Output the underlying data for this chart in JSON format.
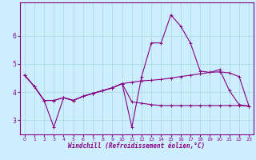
{
  "xlabel": "Windchill (Refroidissement éolien,°C)",
  "bg_color": "#cceeff",
  "line_color": "#880088",
  "grid_color": "#aadddd",
  "hours": [
    0,
    1,
    2,
    3,
    4,
    5,
    6,
    7,
    8,
    9,
    10,
    11,
    12,
    13,
    14,
    15,
    16,
    17,
    18,
    19,
    20,
    21,
    22,
    23
  ],
  "line1": [
    4.6,
    4.2,
    3.7,
    2.75,
    3.8,
    3.7,
    3.85,
    3.95,
    4.05,
    4.15,
    4.3,
    2.75,
    4.55,
    5.75,
    5.75,
    6.75,
    6.35,
    5.75,
    4.75,
    4.7,
    4.8,
    4.05,
    3.55,
    3.5
  ],
  "line2": [
    4.6,
    4.2,
    3.7,
    3.7,
    3.8,
    3.7,
    3.85,
    3.95,
    4.05,
    4.15,
    4.3,
    4.35,
    4.4,
    4.42,
    4.45,
    4.5,
    4.55,
    4.6,
    4.65,
    4.7,
    4.72,
    4.68,
    4.55,
    3.5
  ],
  "line3": [
    4.6,
    4.2,
    3.7,
    3.7,
    3.8,
    3.7,
    3.85,
    3.95,
    4.05,
    4.15,
    4.3,
    3.65,
    3.6,
    3.55,
    3.52,
    3.52,
    3.52,
    3.52,
    3.52,
    3.52,
    3.52,
    3.52,
    3.52,
    3.5
  ],
  "xlim": [
    -0.5,
    23.5
  ],
  "ylim": [
    2.5,
    7.2
  ],
  "yticks": [
    3,
    4,
    5,
    6
  ],
  "xticks": [
    0,
    1,
    2,
    3,
    4,
    5,
    6,
    7,
    8,
    9,
    10,
    11,
    12,
    13,
    14,
    15,
    16,
    17,
    18,
    19,
    20,
    21,
    22,
    23
  ]
}
